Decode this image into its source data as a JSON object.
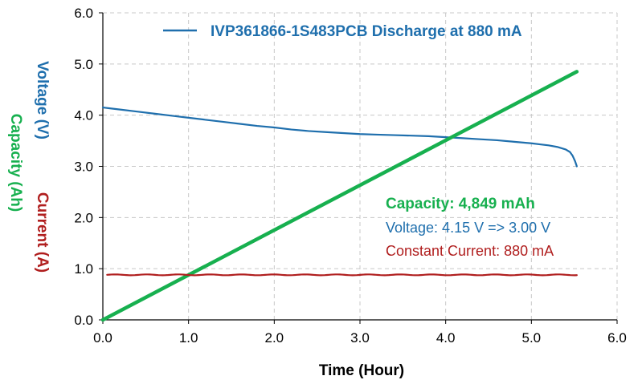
{
  "chart_data": {
    "type": "line",
    "legend": {
      "label": "IVP361866-1S483PCB Discharge at 880 mA",
      "position": "top"
    },
    "xlabel": "Time (Hour)",
    "ylabels": [
      {
        "text": "Voltage (V)",
        "color": "#1f6fad"
      },
      {
        "text": "Capacity (Ah)",
        "color": "#17b04f"
      },
      {
        "text": "Current (A)",
        "color": "#b01e1e"
      }
    ],
    "xlim": [
      0,
      6
    ],
    "ylim": [
      0,
      6
    ],
    "x_ticks": [
      "0.0",
      "1.0",
      "2.0",
      "3.0",
      "4.0",
      "5.0",
      "6.0"
    ],
    "y_ticks": [
      "0.0",
      "1.0",
      "2.0",
      "3.0",
      "4.0",
      "5.0",
      "6.0"
    ],
    "grid": "dashed",
    "series": [
      {
        "name": "IVP361866-1S483PCB Discharge at 880 mA",
        "color": "#1f6fad",
        "x": [
          0,
          0.1,
          0.2,
          0.4,
          0.6,
          0.8,
          1.0,
          1.2,
          1.4,
          1.6,
          1.8,
          2.0,
          2.2,
          2.4,
          2.6,
          2.8,
          3.0,
          3.2,
          3.4,
          3.6,
          3.8,
          4.0,
          4.2,
          4.4,
          4.6,
          4.8,
          5.0,
          5.1,
          5.2,
          5.3,
          5.4,
          5.45,
          5.48,
          5.51,
          5.53
        ],
        "y": [
          4.15,
          4.13,
          4.11,
          4.07,
          4.03,
          3.99,
          3.95,
          3.91,
          3.87,
          3.83,
          3.79,
          3.76,
          3.72,
          3.69,
          3.67,
          3.65,
          3.63,
          3.62,
          3.61,
          3.6,
          3.59,
          3.57,
          3.55,
          3.53,
          3.51,
          3.48,
          3.45,
          3.43,
          3.41,
          3.38,
          3.33,
          3.28,
          3.21,
          3.1,
          3.0
        ]
      },
      {
        "color": "#17b04f",
        "x": [
          0,
          5.53
        ],
        "y": [
          0,
          4.85
        ]
      },
      {
        "color": "#b01e1e",
        "x": [
          0.05,
          5.53
        ],
        "y": [
          0.88,
          0.88
        ]
      }
    ],
    "annotations": [
      {
        "text": "Capacity: 4,849 mAh",
        "color": "#17b04f",
        "bold": true
      },
      {
        "text": "Voltage: 4.15 V => 3.00 V",
        "color": "#1f6fad",
        "bold": false
      },
      {
        "text": "Constant Current: 880 mA",
        "color": "#b01e1e",
        "bold": false
      }
    ]
  }
}
